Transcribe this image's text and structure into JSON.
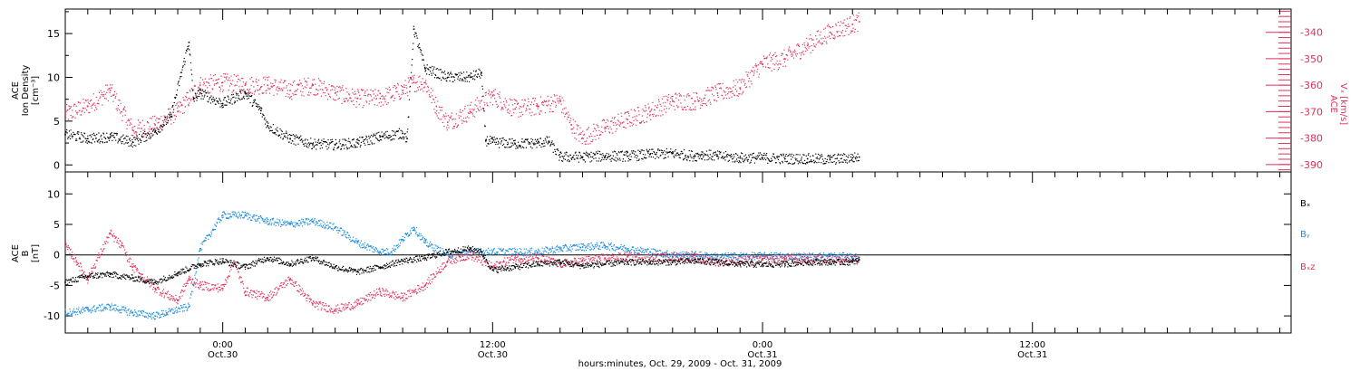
{
  "xaxis": {
    "title": "hours:minutes, Oct. 29, 2009 - Oct. 31, 2009",
    "range_hours": [
      -7,
      47.5
    ],
    "ticks": [
      {
        "t": 0,
        "time": "0:00",
        "date": "Oct.30"
      },
      {
        "t": 12,
        "time": "12:00",
        "date": "Oct.30"
      },
      {
        "t": 24,
        "time": "0:00",
        "date": "Oct.31"
      },
      {
        "t": 36,
        "time": "12:00",
        "date": "Oct.31"
      }
    ]
  },
  "panels": {
    "top": {
      "ylabel_lines": [
        "ACE",
        "Ion Density",
        "[cm⁻³]"
      ],
      "ylim": [
        -0.8,
        17.8
      ],
      "yticks": [
        0,
        5,
        10,
        15
      ],
      "right_axis": {
        "label_lines": [
          "ACE",
          "Vₓ [km/s]"
        ],
        "ylim": [
          -392.8,
          -331.2
        ],
        "ticks": [
          -340,
          -350,
          -360,
          -370,
          -380,
          -390
        ],
        "color": "#e0305a"
      }
    },
    "bottom": {
      "ylabel_lines": [
        "ACE",
        "B",
        "[nT]"
      ],
      "ylim": [
        -12.8,
        13.6
      ],
      "yticks": [
        -10,
        -5,
        0,
        5,
        10
      ],
      "legend": [
        {
          "label": "Bₓ",
          "color": "#000000"
        },
        {
          "label": "Bᵧ",
          "color": "#1a8ae0"
        },
        {
          "label": "Bₓz",
          "color": "#e0305a"
        }
      ]
    }
  },
  "colors": {
    "density": "#000000",
    "vx": "#e0305a",
    "bx": "#000000",
    "by": "#1a8ae0",
    "bz": "#e0305a"
  },
  "chart_data": [
    {
      "type": "scatter",
      "title": "",
      "xlabel": "hours:minutes, Oct. 29, 2009 - Oct. 31, 2009",
      "ylabel": "ACE Ion Density [cm⁻³]",
      "ylim": [
        -0.8,
        17.8
      ],
      "grid": false,
      "series": [
        {
          "name": "ACE Ion Density",
          "x": [
            -7,
            -6,
            -5,
            -4,
            -3,
            -2.3,
            -1.5,
            -1.3,
            -1,
            0,
            1,
            1.7,
            2,
            3,
            4,
            5,
            6,
            7,
            8,
            8.2,
            8.5,
            9,
            10,
            11,
            11.5,
            11.7,
            12,
            13,
            14,
            14.5,
            15,
            16,
            17,
            18,
            19,
            20,
            21,
            21.3,
            22,
            23,
            24,
            25,
            26,
            27,
            28,
            28.3
          ],
          "y": [
            3.5,
            3,
            3.2,
            2.6,
            3.8,
            5.5,
            14,
            7.5,
            8.2,
            7,
            8.2,
            6.2,
            4.5,
            3,
            2.4,
            2.3,
            2.5,
            3.2,
            3.6,
            3,
            15.5,
            11,
            10,
            10,
            10.5,
            2.8,
            2.6,
            2.4,
            2.5,
            2.7,
            0.9,
            0.9,
            1,
            1,
            1.2,
            1.3,
            1,
            1.2,
            1,
            0.8,
            0.8,
            0.7,
            0.7,
            0.6,
            0.8,
            0.9
          ]
        },
        {
          "name": "ACE Vx [km/s]",
          "axis": "right",
          "x": [
            -7,
            -6,
            -5,
            -4,
            -3,
            -2,
            -1.5,
            -1,
            0,
            1,
            2,
            3,
            4,
            5,
            6,
            7,
            8,
            8.5,
            9,
            9.5,
            10,
            11,
            12,
            13,
            14,
            15,
            15.5,
            16,
            17,
            18,
            19,
            20,
            21,
            22,
            23,
            24,
            25,
            26,
            27,
            28,
            28.3
          ],
          "y": [
            -371,
            -368,
            -362,
            -377,
            -375,
            -370,
            -365,
            -360,
            -359,
            -360,
            -360,
            -362,
            -360,
            -363,
            -365,
            -365,
            -362,
            -359,
            -359,
            -368,
            -374,
            -370,
            -364,
            -369,
            -368,
            -366,
            -375,
            -380,
            -376,
            -373,
            -370,
            -366,
            -366,
            -363,
            -361,
            -352,
            -350,
            -345,
            -340,
            -337,
            -336
          ]
        }
      ]
    },
    {
      "type": "scatter",
      "title": "",
      "xlabel": "hours:minutes, Oct. 29, 2009 - Oct. 31, 2009",
      "ylabel": "ACE B [nT]",
      "ylim": [
        -12.8,
        13.6
      ],
      "grid": false,
      "series": [
        {
          "name": "Bx",
          "x": [
            -7,
            -6,
            -5,
            -4,
            -3,
            -2,
            -1,
            0,
            1,
            2,
            3,
            4,
            5,
            6,
            7,
            8,
            9,
            10,
            11,
            11.5,
            12,
            13,
            14,
            15,
            16,
            17,
            18,
            19,
            20,
            21,
            22,
            23,
            24,
            25,
            26,
            27,
            28,
            28.3
          ],
          "y": [
            -4.5,
            -3.5,
            -3.2,
            -3.8,
            -4.5,
            -3,
            -1.5,
            -1,
            -2,
            -0.5,
            -1.5,
            -0.5,
            -2,
            -2.8,
            -2,
            -1,
            -0.5,
            0.5,
            1,
            0.5,
            -2.5,
            -2,
            -1.5,
            -1.2,
            -1.8,
            -1.5,
            -1.2,
            -1.2,
            -1.2,
            -1,
            -1.2,
            -1.5,
            -1.6,
            -1.5,
            -1.2,
            -1.2,
            -1.2,
            -0.8
          ]
        },
        {
          "name": "By",
          "x": [
            -7,
            -6,
            -5,
            -4,
            -3,
            -2.5,
            -1.5,
            -1,
            0,
            1,
            2,
            3,
            4,
            5,
            6,
            7,
            7.5,
            8,
            8.5,
            9,
            10,
            11,
            12,
            13,
            14,
            15,
            16,
            17,
            18,
            19,
            20,
            21,
            22,
            23,
            24,
            25,
            26,
            27,
            28,
            28.3
          ],
          "y": [
            -9.5,
            -9,
            -8.5,
            -9.5,
            -10,
            -9.5,
            -8.5,
            1,
            6.5,
            6.5,
            5.5,
            5,
            5.5,
            4.5,
            2,
            0.5,
            0.5,
            2.5,
            4.5,
            2,
            0,
            0.5,
            0.5,
            0.5,
            0.5,
            1,
            1.3,
            1.5,
            1,
            0.5,
            0,
            0,
            -0.3,
            -0.2,
            -0.2,
            -0.2,
            -0.3,
            -0.2,
            -0.3,
            -0.4
          ]
        },
        {
          "name": "Bz",
          "x": [
            -7,
            -6.5,
            -6,
            -5,
            -4.5,
            -4,
            -3,
            -2,
            -1.5,
            -1,
            0,
            0.5,
            1,
            2,
            3,
            4,
            5,
            6,
            7,
            8,
            9,
            10,
            11,
            12,
            13,
            14,
            15,
            16,
            17,
            18,
            19,
            20,
            21,
            22,
            23,
            24,
            25,
            26,
            27,
            28,
            28.3
          ],
          "y": [
            1.5,
            -1,
            -4,
            3.5,
            1.5,
            -2,
            -5.5,
            -7.5,
            -4,
            -5,
            -5.5,
            -1,
            -6,
            -7,
            -4,
            -8,
            -9,
            -8,
            -6,
            -7,
            -5,
            -1,
            0,
            -2,
            -0.5,
            -0.5,
            -1.5,
            -1,
            -0.5,
            -0.3,
            -0.5,
            -0.3,
            -0.5,
            -1.2,
            -1,
            -0.8,
            -0.7,
            -0.6,
            -0.8,
            -0.9,
            -0.8
          ]
        }
      ]
    }
  ]
}
